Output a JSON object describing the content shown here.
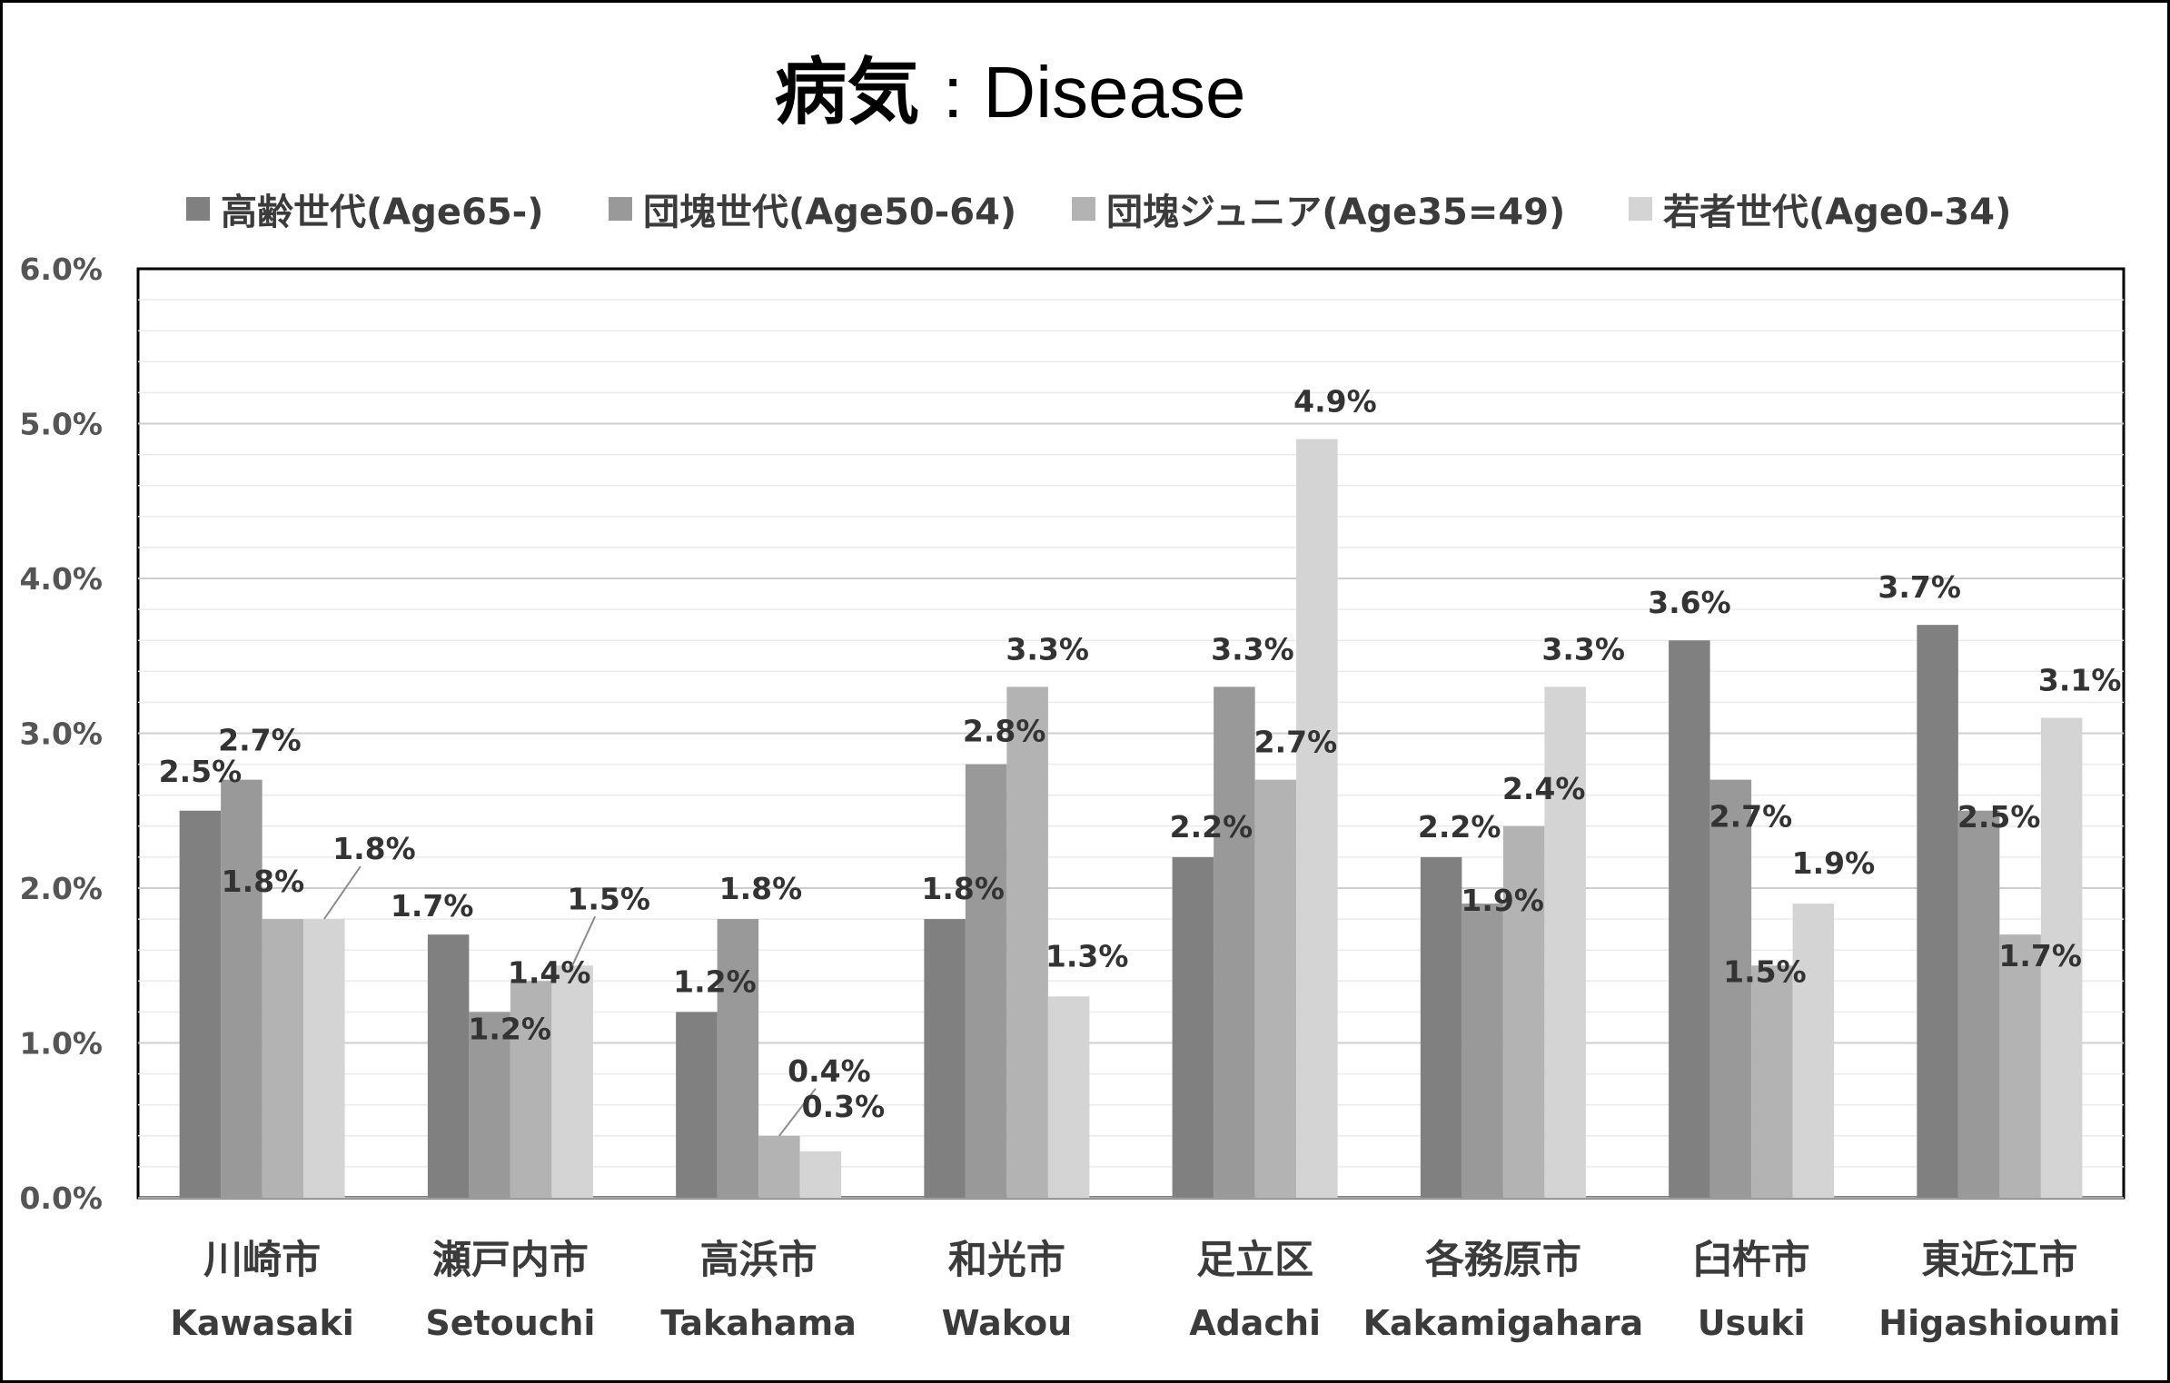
{
  "chart_data": {
    "type": "bar",
    "title_jp": "病気",
    "title_en": ": Disease",
    "categories": [
      {
        "jp": "川崎市",
        "en": "Kawasaki"
      },
      {
        "jp": "瀬戸内市",
        "en": "Setouchi"
      },
      {
        "jp": "高浜市",
        "en": "Takahama"
      },
      {
        "jp": "和光市",
        "en": "Wakou"
      },
      {
        "jp": "足立区",
        "en": "Adachi"
      },
      {
        "jp": "各務原市",
        "en": "Kakamigahara"
      },
      {
        "jp": "臼杵市",
        "en": "Usuki"
      },
      {
        "jp": "東近江市",
        "en": "Higashioumi"
      }
    ],
    "series": [
      {
        "name": "高齢世代(Age65-)",
        "color": "#808080",
        "values": [
          2.5,
          1.7,
          1.2,
          1.8,
          2.2,
          2.2,
          3.6,
          3.7
        ]
      },
      {
        "name": "団塊世代(Age50-64)",
        "color": "#999999",
        "values": [
          2.7,
          1.2,
          1.8,
          2.8,
          3.3,
          1.9,
          2.7,
          2.5
        ]
      },
      {
        "name": "団塊ジュニア(Age35=49)",
        "color": "#b3b3b3",
        "values": [
          1.8,
          1.4,
          0.4,
          3.3,
          2.7,
          2.4,
          1.5,
          1.7
        ]
      },
      {
        "name": "若者世代(Age0-34)",
        "color": "#d4d4d4",
        "values": [
          1.8,
          1.5,
          0.3,
          1.3,
          4.9,
          3.3,
          1.9,
          3.1
        ]
      }
    ],
    "value_labels": [
      [
        "2.5%",
        "1.7%",
        "1.2%",
        "1.8%",
        "2.2%",
        "2.2%",
        "3.6%",
        "3.7%"
      ],
      [
        "2.7%",
        "1.2%",
        "1.8%",
        "2.8%",
        "3.3%",
        "1.9%",
        "2.7%",
        "2.5%"
      ],
      [
        "1.8%",
        "1.4%",
        "0.4%",
        "3.3%",
        "2.7%",
        "2.4%",
        "1.5%",
        "1.7%"
      ],
      [
        "1.8%",
        "1.5%",
        "0.3%",
        "1.3%",
        "4.9%",
        "3.3%",
        "1.9%",
        "3.1%"
      ]
    ],
    "y_ticks": [
      "0.0%",
      "1.0%",
      "2.0%",
      "3.0%",
      "4.0%",
      "5.0%",
      "6.0%"
    ],
    "ylim": [
      0,
      6
    ],
    "unit": "%",
    "grid": true,
    "minor_grid_step": 0.2,
    "legend_position": "top"
  }
}
